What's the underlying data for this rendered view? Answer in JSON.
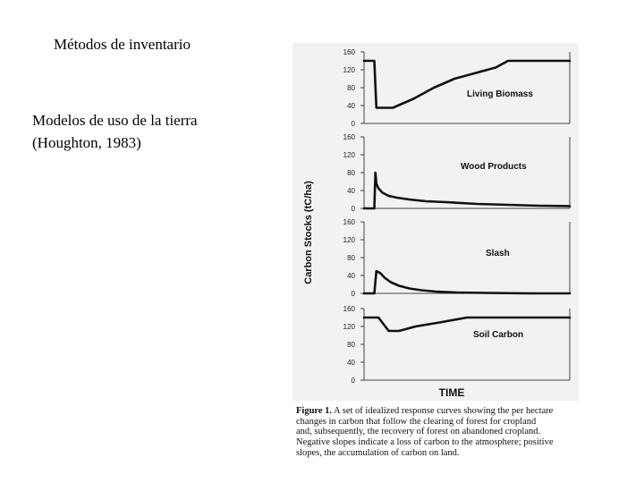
{
  "slide": {
    "title": "Métodos de inventario",
    "subtitle_line1": "Modelos de uso de la tierra",
    "subtitle_line2": "(Houghton, 1983)"
  },
  "figure": {
    "caption_label": "Figure 1.",
    "caption_line1": " A set of idealized response curves showing the per hectare",
    "caption_line2": "changes in carbon that follow the clearing of forest for cropland",
    "caption_line3": "and, subsequently, the recovery of forest on abandoned cropland.",
    "caption_line4": "Negative slopes indicate a loss of carbon to the atmosphere; positive",
    "caption_line5": "slopes, the accumulation of carbon on land."
  },
  "chart_data": {
    "type": "line",
    "xlabel": "TIME",
    "ylabel": "Carbon Stocks (tC/ha)",
    "ylim": [
      0,
      160
    ],
    "yticks": [
      0,
      40,
      80,
      120,
      160
    ],
    "x_range": [
      0,
      100
    ],
    "panels": [
      {
        "name": "Living Biomass",
        "x": [
          0,
          5,
          6,
          14,
          24,
          34,
          44,
          56,
          64,
          70,
          100
        ],
        "y": [
          140,
          140,
          35,
          35,
          55,
          80,
          100,
          115,
          125,
          140,
          140
        ]
      },
      {
        "name": "Wood Products",
        "x": [
          0,
          5,
          5.5,
          6,
          7,
          9,
          12,
          16,
          22,
          30,
          40,
          55,
          70,
          85,
          100
        ],
        "y": [
          0,
          0,
          80,
          55,
          45,
          35,
          28,
          24,
          20,
          16,
          14,
          10,
          8,
          6,
          5
        ]
      },
      {
        "name": "Slash",
        "x": [
          0,
          5,
          6,
          8,
          10,
          13,
          17,
          22,
          28,
          35,
          45,
          60,
          80,
          100
        ],
        "y": [
          0,
          0,
          50,
          45,
          35,
          25,
          17,
          11,
          7,
          4,
          2,
          1,
          0,
          0
        ]
      },
      {
        "name": "Soil Carbon",
        "x": [
          0,
          7,
          12,
          17,
          25,
          38,
          50,
          100
        ],
        "y": [
          140,
          140,
          110,
          110,
          120,
          130,
          140,
          140
        ]
      }
    ]
  }
}
